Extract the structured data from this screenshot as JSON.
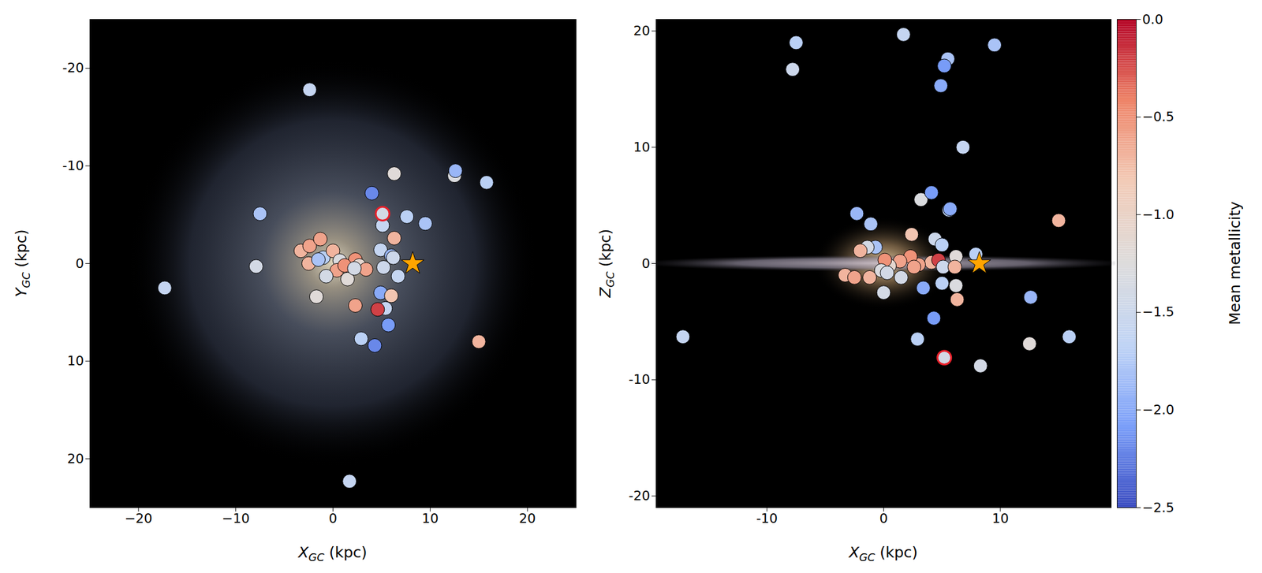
{
  "chart_data": [
    {
      "type": "scatter",
      "xlabel": "XGC (kpc)",
      "ylabel": "YGC (kpc)",
      "xlim": [
        -25,
        25
      ],
      "ylim": [
        25,
        -25
      ],
      "xticks": [
        {
          "value": -20,
          "label": "−20"
        },
        {
          "value": -10,
          "label": "−10"
        },
        0,
        10,
        20
      ],
      "yticks": [
        -20,
        -10,
        0,
        10,
        20
      ],
      "series": [
        {
          "marker": "circle",
          "x": [
            -2.4,
            4.0,
            6.3,
            12.5,
            12.6,
            15.8,
            -7.5,
            5.1,
            7.6,
            9.5,
            6.3,
            4.9,
            6.0,
            6.2,
            6.7,
            5.2,
            4.9,
            6.0,
            5.4,
            4.6,
            2.3,
            5.7,
            2.9,
            4.3,
            15.0,
            1.7,
            -17.3,
            -7.9,
            -1.7,
            -3.3,
            -2.4,
            -1.3,
            -2.5,
            -1.0,
            -1.5,
            0.0,
            0.7,
            0.4,
            1.5,
            -0.7,
            2.3,
            2.7,
            3.4,
            1.2,
            2.2
          ],
          "y": [
            -17.8,
            -7.2,
            -9.2,
            -9.0,
            -9.5,
            -8.3,
            -5.1,
            -3.9,
            -4.8,
            -4.1,
            -2.6,
            -1.4,
            -0.8,
            -0.6,
            1.3,
            0.4,
            3.0,
            3.3,
            4.6,
            4.7,
            4.3,
            6.3,
            7.7,
            8.4,
            8.0,
            22.3,
            2.5,
            0.3,
            3.4,
            -1.3,
            -1.8,
            -2.5,
            0.0,
            -0.6,
            -0.4,
            -1.3,
            -0.3,
            0.7,
            1.6,
            1.3,
            -0.4,
            0.2,
            0.6,
            0.2,
            0.5
          ],
          "metallicity": [
            -1.6,
            -2.2,
            -1.2,
            -1.3,
            -1.9,
            -1.7,
            -1.8,
            -1.6,
            -1.7,
            -1.8,
            -0.7,
            -1.6,
            -1.9,
            -1.5,
            -1.6,
            -1.5,
            -2.0,
            -0.8,
            -1.6,
            -0.2,
            -0.6,
            -2.1,
            -1.7,
            -2.2,
            -0.7,
            -1.6,
            -1.6,
            -1.4,
            -1.2,
            -0.7,
            -0.6,
            -0.6,
            -0.7,
            -1.7,
            -1.8,
            -0.7,
            -1.3,
            -0.6,
            -1.2,
            -1.4,
            -0.5,
            -1.1,
            -0.6,
            -0.5,
            -1.4
          ]
        },
        {
          "marker": "circle",
          "color": "#e8202a",
          "x": [
            5.1
          ],
          "y": [
            -5.1
          ],
          "metallicity": [
            -1.4
          ]
        },
        {
          "marker": "star",
          "color": "#ffa500",
          "x": [
            8.2
          ],
          "y": [
            0
          ]
        }
      ]
    },
    {
      "type": "scatter",
      "xlabel": "XGC (kpc)",
      "ylabel": "ZGC (kpc)",
      "xlim": [
        -19.5,
        19.5
      ],
      "ylim": [
        -21,
        21
      ],
      "xticks": [
        -10,
        0,
        10
      ],
      "yticks": [
        -20,
        -10,
        0,
        10,
        20
      ],
      "series": [
        {
          "marker": "circle",
          "x": [
            -7.5,
            -7.8,
            1.7,
            5.5,
            5.2,
            4.9,
            9.5,
            6.8,
            3.2,
            4.1,
            5.6,
            5.7,
            -2.3,
            -1.1,
            2.4,
            -0.7,
            -1.4,
            -2.0,
            4.4,
            5.0,
            7.9,
            6.2,
            4.1,
            4.7,
            3.0,
            2.3,
            1.4,
            0.5,
            0.1,
            -0.2,
            0.3,
            1.5,
            2.6,
            5.1,
            6.1,
            -3.3,
            -2.5,
            -1.2,
            0.0,
            3.4,
            5.0,
            6.2,
            6.3,
            4.3,
            2.9,
            8.3,
            12.5,
            12.6,
            15.9,
            15.0,
            -17.2
          ],
          "y": [
            19.0,
            16.7,
            19.7,
            17.6,
            17.0,
            15.3,
            18.8,
            10.0,
            5.5,
            6.1,
            4.6,
            4.7,
            4.3,
            3.4,
            2.5,
            1.4,
            1.4,
            1.1,
            2.1,
            1.6,
            0.8,
            0.6,
            0.1,
            0.3,
            -0.1,
            0.6,
            0.2,
            -0.2,
            0.3,
            -0.6,
            -0.8,
            -1.2,
            -0.3,
            -0.3,
            -0.3,
            -1.0,
            -1.2,
            -1.2,
            -2.5,
            -2.1,
            -1.7,
            -1.9,
            -3.1,
            -4.7,
            -6.5,
            -8.8,
            -6.9,
            -2.9,
            -6.3,
            3.7,
            -6.3
          ],
          "metallicity": [
            -1.7,
            -1.5,
            -1.6,
            -1.8,
            -2.1,
            -2.0,
            -1.8,
            -1.6,
            -1.3,
            -2.1,
            -1.7,
            -2.0,
            -1.9,
            -1.8,
            -0.8,
            -1.8,
            -1.4,
            -0.7,
            -1.5,
            -1.7,
            -1.7,
            -1.2,
            -0.7,
            -0.2,
            -0.6,
            -0.5,
            -0.6,
            -1.1,
            -0.5,
            -1.3,
            -1.4,
            -1.4,
            -0.6,
            -1.5,
            -0.7,
            -0.7,
            -0.6,
            -0.7,
            -1.4,
            -2.0,
            -1.7,
            -1.3,
            -0.7,
            -2.1,
            -1.7,
            -1.4,
            -1.2,
            -1.9,
            -1.7,
            -0.7,
            -1.6
          ]
        },
        {
          "marker": "circle",
          "color": "#e8202a",
          "x": [
            5.2
          ],
          "y": [
            -8.1
          ],
          "metallicity": [
            -1.4
          ]
        },
        {
          "marker": "star",
          "color": "#ffa500",
          "x": [
            8.2
          ],
          "y": [
            0
          ]
        }
      ],
      "colorbar": {
        "label": "Mean metallicity",
        "range": [
          -2.5,
          0
        ],
        "ticks": [
          {
            "value": 0,
            "label": "0.0"
          },
          {
            "value": -0.5,
            "label": "−0.5"
          },
          {
            "value": -1.0,
            "label": "−1.0"
          },
          {
            "value": -1.5,
            "label": "−1.5"
          },
          {
            "value": -2.0,
            "label": "−2.0"
          },
          {
            "value": -2.5,
            "label": "−2.5"
          }
        ]
      }
    }
  ]
}
